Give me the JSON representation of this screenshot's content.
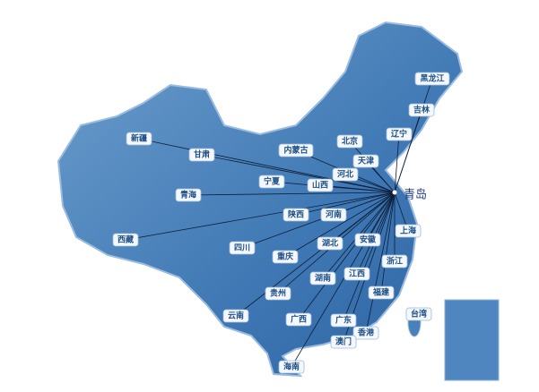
{
  "origin": {
    "label": "青岛"
  },
  "destinations": [
    {
      "label": "黑龙江"
    },
    {
      "label": "吉林"
    },
    {
      "label": "辽宁"
    },
    {
      "label": "北京"
    },
    {
      "label": "天津"
    },
    {
      "label": "内蒙古"
    },
    {
      "label": "新疆"
    },
    {
      "label": "甘肃"
    },
    {
      "label": "宁夏"
    },
    {
      "label": "河北"
    },
    {
      "label": "山西"
    },
    {
      "label": "青海"
    },
    {
      "label": "陕西"
    },
    {
      "label": "河南"
    },
    {
      "label": "西藏"
    },
    {
      "label": "四川"
    },
    {
      "label": "重庆"
    },
    {
      "label": "湖北"
    },
    {
      "label": "安徽"
    },
    {
      "label": "上海"
    },
    {
      "label": "浙江"
    },
    {
      "label": "湖南"
    },
    {
      "label": "江西"
    },
    {
      "label": "贵州"
    },
    {
      "label": "福建"
    },
    {
      "label": "云南"
    },
    {
      "label": "广西"
    },
    {
      "label": "广东"
    },
    {
      "label": "香港"
    },
    {
      "label": "澳门"
    },
    {
      "label": "海南"
    }
  ],
  "extra_regions": [
    {
      "label": "台湾"
    }
  ]
}
